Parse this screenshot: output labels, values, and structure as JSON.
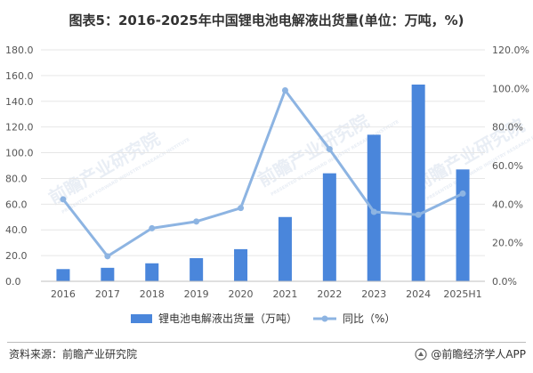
{
  "header": {
    "title": "图表5：2016-2025年中国锂电池电解液出货量(单位：万吨，%)"
  },
  "watermark": {
    "text": "前瞻产业研究院",
    "sub": "PRESENTED BY FORWARD INDUSTRY RESEARCH INSTITUTE"
  },
  "footer": {
    "source": "资料来源：前瞻产业研究院",
    "brand": "@前瞻经济学人APP"
  },
  "colors": {
    "bar": "#4a86db",
    "line": "#8db4e2",
    "gridline": "#e6e6e6",
    "axis": "#bfbfbf"
  },
  "chart_data": {
    "type": "bar",
    "categories": [
      "2016",
      "2017",
      "2018",
      "2019",
      "2020",
      "2021",
      "2022",
      "2023",
      "2024",
      "2025H1"
    ],
    "series": [
      {
        "name": "锂电池电解液出货量（万吨）",
        "type": "bar",
        "axis": "left",
        "values": [
          9.5,
          10.5,
          14.0,
          18.0,
          25.0,
          50.0,
          84.0,
          114.0,
          153.0,
          87.0
        ]
      },
      {
        "name": "同比（%）",
        "type": "line",
        "axis": "right",
        "values": [
          42.5,
          13.0,
          27.5,
          31.0,
          38.0,
          99.0,
          68.5,
          36.0,
          34.5,
          45.5
        ]
      }
    ],
    "y_left": {
      "lim": [
        0,
        180
      ],
      "ticks": [
        0,
        20,
        40,
        60,
        80,
        100,
        120,
        140,
        160,
        180
      ],
      "tick_labels": [
        "0.0",
        "20.0",
        "40.0",
        "60.0",
        "80.0",
        "100.0",
        "120.0",
        "140.0",
        "160.0",
        "180.0"
      ]
    },
    "y_right": {
      "lim": [
        0,
        120
      ],
      "ticks": [
        0,
        20,
        40,
        60,
        80,
        100,
        120
      ],
      "tick_labels": [
        "0.0%",
        "20.0%",
        "40.0%",
        "60.0%",
        "80.0%",
        "100.0%",
        "120.0%"
      ]
    },
    "grid": true,
    "legend_position": "bottom"
  }
}
